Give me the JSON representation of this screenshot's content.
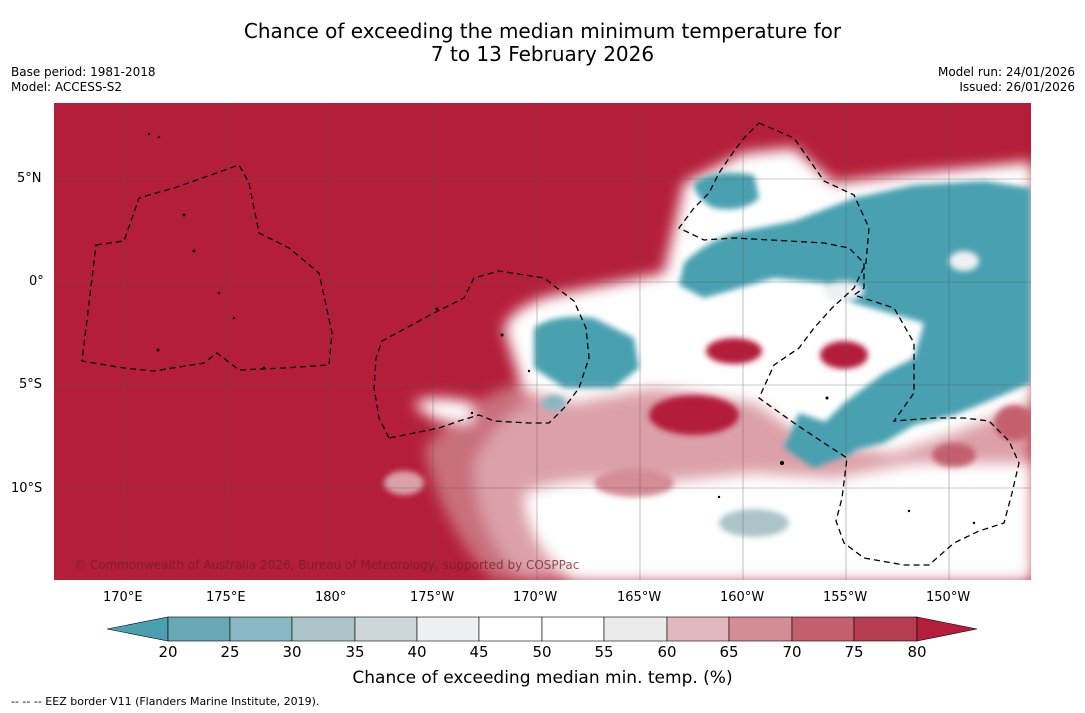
{
  "title": {
    "line1": "Chance of exceeding the median minimum temperature for",
    "line2": "7 to 13 February 2026"
  },
  "meta": {
    "base_period": "Base period: 1981-2018",
    "model": "Model: ACCESS-S2",
    "model_run": "Model run: 24/01/2026",
    "issued": "Issued: 26/01/2026"
  },
  "map": {
    "lat_labels": [
      "5°N",
      "0°",
      "5°S",
      "10°S"
    ],
    "lon_labels": [
      "170°E",
      "175°E",
      "180°",
      "175°W",
      "170°W",
      "165°W",
      "160°W",
      "155°W",
      "150°W"
    ],
    "copyright": "© Commonwealth of Australia 2026, Bureau of Meteorology, supported by COSPPac",
    "colors": {
      "high": "#b41e3a",
      "low": "#4aa0b0"
    }
  },
  "colorbar": {
    "labels": [
      "20",
      "25",
      "30",
      "35",
      "40",
      "45",
      "50",
      "55",
      "60",
      "65",
      "70",
      "75",
      "80"
    ],
    "colors": [
      "#4aa0b0",
      "#66a8b4",
      "#88b8c4",
      "#aac4c8",
      "#cdd7da",
      "#eef1f3",
      "#ffffff",
      "#ffffff",
      "#ecebeb",
      "#e0b8be",
      "#d48c95",
      "#c4606e",
      "#b83c50",
      "#b41e3a"
    ],
    "title": "Chance of exceeding median min. temp. (%)"
  },
  "footnote": "--  --  -- EEZ border V11 (Flanders Marine Institute, 2019)."
}
